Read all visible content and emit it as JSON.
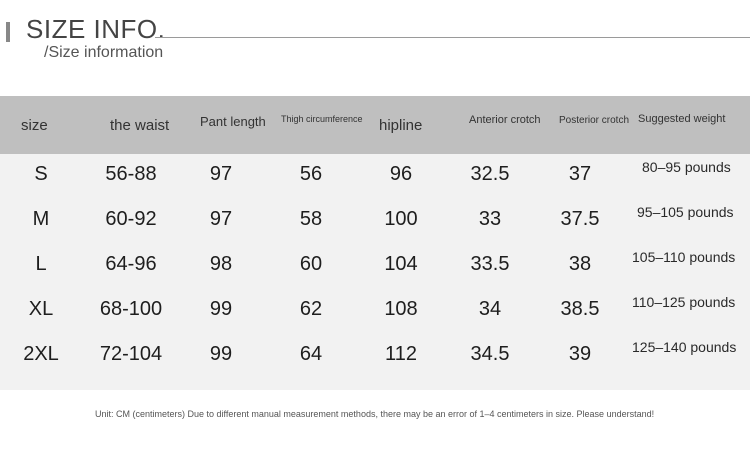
{
  "header": {
    "title": "SIZE INFO.",
    "subtitle": "/Size information"
  },
  "table": {
    "columns": [
      "size",
      "the waist",
      "Pant length",
      "Thigh circumference",
      "hipline",
      "Anterior crotch",
      "Posterior crotch",
      "Suggested weight"
    ],
    "rows": [
      {
        "size": "S",
        "waist": "56-88",
        "pant_length": "97",
        "thigh": "56",
        "hipline": "96",
        "anterior": "32.5",
        "posterior": "37",
        "weight": "80–95 pounds"
      },
      {
        "size": "M",
        "waist": "60-92",
        "pant_length": "97",
        "thigh": "58",
        "hipline": "100",
        "anterior": "33",
        "posterior": "37.5",
        "weight": "95–105 pounds"
      },
      {
        "size": "L",
        "waist": "64-96",
        "pant_length": "98",
        "thigh": "60",
        "hipline": "104",
        "anterior": "33.5",
        "posterior": "38",
        "weight": "105–110 pounds"
      },
      {
        "size": "XL",
        "waist": "68-100",
        "pant_length": "99",
        "thigh": "62",
        "hipline": "108",
        "anterior": "34",
        "posterior": "38.5",
        "weight": "110–125 pounds"
      },
      {
        "size": "2XL",
        "waist": "72-104",
        "pant_length": "99",
        "thigh": "64",
        "hipline": "112",
        "anterior": "34.5",
        "posterior": "39",
        "weight": "125–140 pounds"
      }
    ]
  },
  "footer": {
    "note": "Unit: CM (centimeters) Due to different manual measurement methods, there may be an error of 1–4 centimeters in size. Please understand!"
  },
  "colors": {
    "header_bg": "#bfbfbf",
    "table_bg": "#f2f2f2"
  }
}
